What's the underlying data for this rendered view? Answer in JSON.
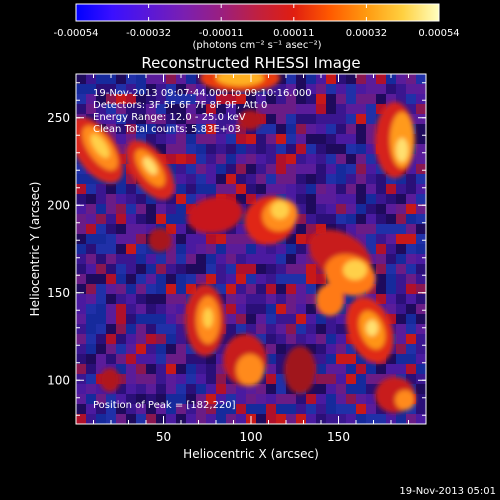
{
  "colorbar": {
    "ticks": [
      "-0.00054",
      "-0.00032",
      "-0.00011",
      "0.00011",
      "0.00032",
      "0.00054"
    ],
    "units": "(photons cm⁻² s⁻¹ asec⁻²)",
    "stops": [
      "#0000ff",
      "#3a10ff",
      "#5a18d8",
      "#7b1fb0",
      "#9a1f80",
      "#c02040",
      "#e01e10",
      "#ff5a00",
      "#ff9a10",
      "#ffd040",
      "#ffffc0"
    ]
  },
  "title": "Reconstructed RHESSI Image",
  "annotations": {
    "time_range": "19-Nov-2013 09:07:44.000 to 09:10:16.000",
    "detectors": "Detectors: 3F 5F 6F 7F 8F 9F, Att 0",
    "energy": "Energy Range: 12.0 - 25.0 keV",
    "clean": "Clean    Total counts: 5.83E+03",
    "peak": "Position of Peak = [182,220]"
  },
  "axes": {
    "x_label": "Heliocentric X (arcsec)",
    "y_label": "Heliocentric Y (arcsec)",
    "x_ticks": [
      "50",
      "100",
      "150"
    ],
    "y_ticks": [
      "100",
      "150",
      "200",
      "250"
    ]
  },
  "footer": {
    "timestamp": "19-Nov-2013 05:01"
  },
  "colors": {
    "background": "#000000",
    "text": "#ffffff",
    "image_low": "#2a0a6e",
    "image_mid": "#b8152a",
    "image_high": "#ffc830"
  }
}
